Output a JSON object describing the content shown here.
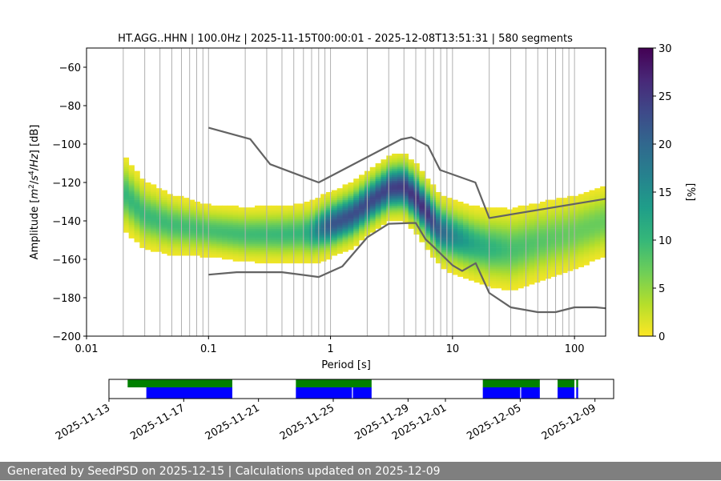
{
  "footer": {
    "text": "Generated by SeedPSD on 2025-12-15 | Calculations updated on 2025-12-09"
  },
  "colors": {
    "model_curve": "#636363",
    "grid": "#b0b0b0",
    "availability_data": "#0000ff",
    "availability_gaps": "#008000",
    "viridis": [
      "#fde725",
      "#b5de2b",
      "#6ece58",
      "#35b779",
      "#1f9e89",
      "#26828e",
      "#31688e",
      "#3e4989",
      "#482878",
      "#440154"
    ]
  },
  "chart_data": [
    {
      "type": "heatmap",
      "title": "HT.AGG..HHN | 100.0Hz | 2025-11-15T00:00:01 - 2025-12-08T13:51:31 | 580 segments",
      "xlabel": "Period [s]",
      "ylabel": "Amplitude [m²/s⁴/Hz] [dB]",
      "x_scale": "log",
      "xlim": [
        0.01,
        180
      ],
      "ylim": [
        -200,
        -50
      ],
      "x_ticks": [
        0.01,
        0.1,
        1,
        10,
        100
      ],
      "x_tick_labels": [
        "0.01",
        "0.1",
        "1",
        "10",
        "100"
      ],
      "y_ticks": [
        -200,
        -180,
        -160,
        -140,
        -120,
        -100,
        -80,
        -60
      ],
      "y_tick_labels": [
        "−200",
        "−180",
        "−160",
        "−140",
        "−120",
        "−100",
        "−80",
        "−60"
      ],
      "grid": true,
      "period_range_s": [
        0.02,
        180
      ],
      "density_ridge": {
        "periods": [
          0.02,
          0.03,
          0.05,
          0.1,
          0.2,
          0.4,
          0.7,
          1,
          1.5,
          2,
          3,
          4,
          5,
          6,
          8,
          10,
          15,
          20,
          30,
          50,
          100,
          180
        ],
        "power_db": [
          -125,
          -137,
          -142,
          -145,
          -147,
          -147,
          -146,
          -142,
          -137,
          -131,
          -123,
          -122,
          -128,
          -135,
          -145,
          -148,
          -152,
          -154,
          -155,
          -151,
          -146,
          -140
        ]
      },
      "ridge_half_width_db": {
        "periods": [
          0.02,
          0.03,
          0.1,
          1,
          3,
          10,
          30,
          180
        ],
        "values": [
          10,
          9,
          7,
          8,
          8,
          9,
          11,
          10
        ]
      },
      "density_scale_percent": {
        "periods": [
          0.02,
          0.1,
          0.6,
          1,
          3,
          6,
          10,
          15,
          30,
          100,
          180
        ],
        "values": [
          10,
          9,
          10,
          22,
          24,
          26,
          16,
          12,
          9,
          7,
          7
        ]
      },
      "model_curves": [
        {
          "periods": [
            0.1,
            0.17,
            0.4,
            0.8,
            1.25,
            2.0,
            3.0,
            4.5,
            5.0,
            6.0,
            7.0,
            10.0,
            12.0,
            15.5,
            20.0,
            30.0,
            50.0,
            70.0,
            100.0,
            150.0,
            180.0
          ],
          "power_db": [
            -168,
            -166.7,
            -166.7,
            -169.2,
            -163.7,
            -148.6,
            -141.5,
            -141.1,
            -141.1,
            -149.5,
            -153.5,
            -163.1,
            -166.1,
            -162.0,
            -177.5,
            -185.0,
            -187.5,
            -187.5,
            -185.0,
            -185.0,
            -185.5
          ]
        },
        {
          "periods": [
            0.1,
            0.22,
            0.32,
            0.8,
            3.8,
            4.6,
            6.3,
            7.9,
            15.4,
            20.0,
            200.0
          ],
          "power_db": [
            -91.5,
            -97.4,
            -110.5,
            -120.0,
            -97.5,
            -96.5,
            -101.0,
            -113.5,
            -120.0,
            -138.5,
            -128.5
          ]
        }
      ],
      "colorbar": {
        "label": "[%]",
        "range": [
          0,
          30
        ],
        "ticks": [
          0,
          5,
          10,
          15,
          20,
          25,
          30
        ],
        "tick_labels": [
          "0",
          "5",
          "10",
          "15",
          "20",
          "25",
          "30"
        ],
        "colormap": "viridis_r"
      }
    },
    {
      "type": "timeline",
      "x_ticks": [
        "2025-11-13",
        "2025-11-17",
        "2025-11-21",
        "2025-11-25",
        "2025-11-29",
        "2025-12-01",
        "2025-12-05",
        "2025-12-09"
      ],
      "xlim": [
        "2025-11-13",
        "2025-12-10"
      ],
      "data_segments": [
        [
          "2025-11-15",
          "2025-11-19"
        ],
        [
          "2025-11-19",
          "2025-11-19.6"
        ],
        [
          "2025-11-23",
          "2025-11-26"
        ],
        [
          "2025-11-26.05",
          "2025-11-27.05"
        ],
        [
          "2025-12-03",
          "2025-12-05"
        ],
        [
          "2025-12-05.05",
          "2025-12-06.05"
        ],
        [
          "2025-12-07",
          "2025-12-07.9"
        ],
        [
          "2025-12-08",
          "2025-12-08.1"
        ]
      ],
      "gap_segments": [
        [
          "2025-11-14",
          "2025-11-19.6"
        ],
        [
          "2025-11-23",
          "2025-11-27.05"
        ],
        [
          "2025-12-03",
          "2025-12-06.05"
        ],
        [
          "2025-12-07",
          "2025-12-07.9"
        ],
        [
          "2025-12-08",
          "2025-12-08.1"
        ]
      ]
    }
  ]
}
